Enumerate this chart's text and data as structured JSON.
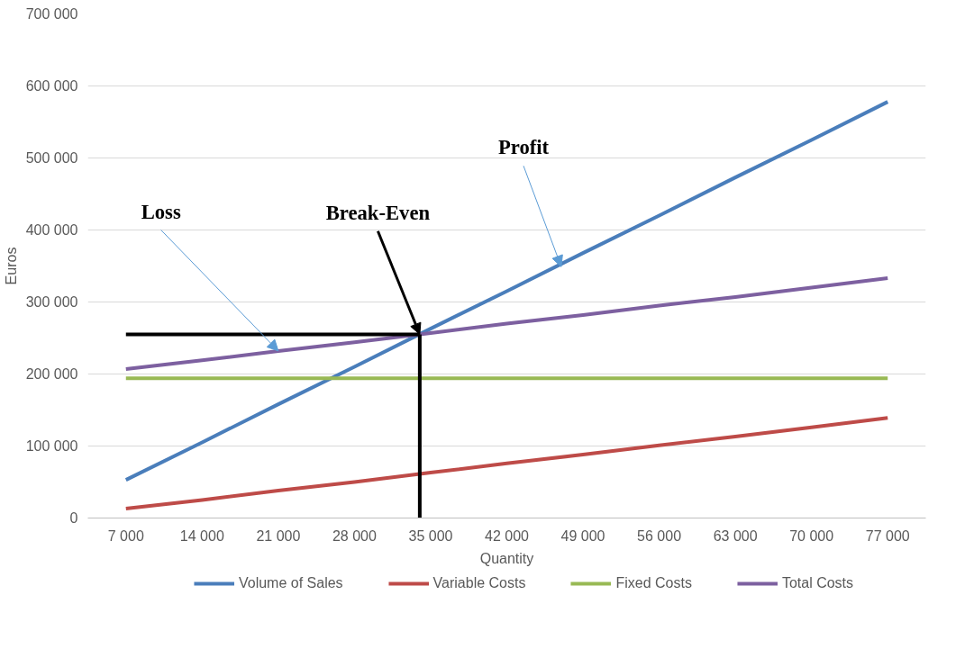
{
  "chart_data": {
    "type": "line",
    "xlabel": "Quantity",
    "ylabel": "Euros",
    "x": [
      7000,
      14000,
      21000,
      28000,
      35000,
      42000,
      49000,
      56000,
      63000,
      70000,
      77000
    ],
    "series": [
      {
        "name": "Volume of Sales",
        "color": "#4a7ebb",
        "values": [
          53000,
          105000,
          158000,
          210000,
          263000,
          315000,
          368000,
          420000,
          473000,
          525000,
          578000
        ]
      },
      {
        "name": "Variable Costs",
        "color": "#be4b48",
        "values": [
          13000,
          25000,
          38000,
          50000,
          63000,
          76000,
          88000,
          101000,
          113000,
          126000,
          139000
        ]
      },
      {
        "name": "Fixed Costs",
        "color": "#98b954",
        "values": [
          194000,
          194000,
          194000,
          194000,
          194000,
          194000,
          194000,
          194000,
          194000,
          194000,
          194000
        ]
      },
      {
        "name": "Total Costs",
        "color": "#7d60a0",
        "values": [
          207000,
          219000,
          232000,
          244000,
          257000,
          270000,
          282000,
          295000,
          307000,
          320000,
          333000
        ]
      }
    ],
    "xlim": [
      3500,
      80500
    ],
    "xticks": [
      {
        "value": 7000,
        "label": "7 000"
      },
      {
        "value": 14000,
        "label": "14 000"
      },
      {
        "value": 21000,
        "label": "21 000"
      },
      {
        "value": 28000,
        "label": "28 000"
      },
      {
        "value": 35000,
        "label": "35 000"
      },
      {
        "value": 42000,
        "label": "42 000"
      },
      {
        "value": 49000,
        "label": "49 000"
      },
      {
        "value": 56000,
        "label": "56 000"
      },
      {
        "value": 63000,
        "label": "63 000"
      },
      {
        "value": 70000,
        "label": "70 000"
      },
      {
        "value": 77000,
        "label": "77 000"
      }
    ],
    "ylim": [
      0,
      700000
    ],
    "yticks": [
      {
        "value": 0,
        "label": "0"
      },
      {
        "value": 100000,
        "label": "100 000"
      },
      {
        "value": 200000,
        "label": "200 000"
      },
      {
        "value": 300000,
        "label": "300 000"
      },
      {
        "value": 400000,
        "label": "400 000"
      },
      {
        "value": 500000,
        "label": "500 000"
      },
      {
        "value": 600000,
        "label": "600 000"
      },
      {
        "value": 700000,
        "label": "700 000"
      }
    ],
    "ref_lines": [
      {
        "axis": "x",
        "value": 34000,
        "color": "#000000"
      },
      {
        "axis": "y",
        "value": 255000,
        "color": "#000000"
      }
    ],
    "annotations": [
      {
        "text": "Loss",
        "x": 21000,
        "y": 232000
      },
      {
        "text": "Break-Even",
        "x": 34000,
        "y": 255000
      },
      {
        "text": "Profit",
        "x": 47000,
        "y": 349000
      }
    ],
    "grid": "y",
    "legend": "bottom",
    "marker": "none",
    "line_style": "solid"
  }
}
